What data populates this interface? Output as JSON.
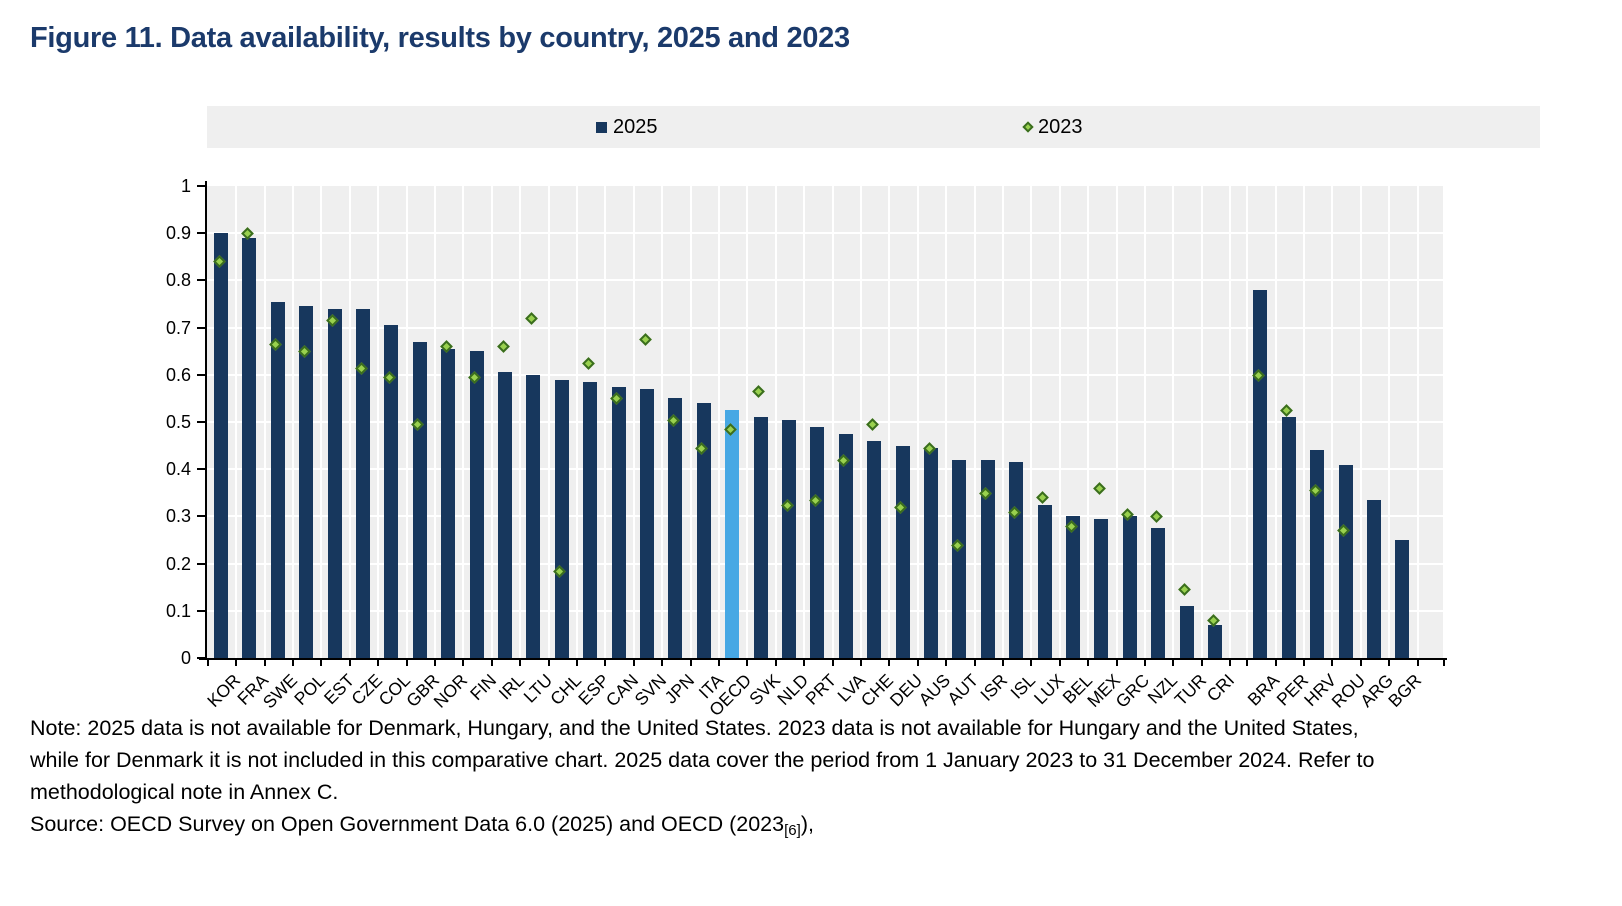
{
  "title": "Figure 11. Data availability, results by country, 2025 and 2023",
  "legend": {
    "items": [
      {
        "label": "2025",
        "marker": "square-icon",
        "color": "#17375d"
      },
      {
        "label": "2023",
        "marker": "diamond-icon",
        "color": "#99d14e"
      }
    ]
  },
  "note": {
    "lines": [
      "Note: 2025 data is not available for Denmark, Hungary, and the United States. 2023 data is not available for Hungary and the United States,",
      "while for Denmark it is not included in this comparative chart. 2025 data cover the period from 1 January 2023 to 31 December 2024. Refer to",
      "methodological note in Annex C."
    ],
    "source_prefix": "Source: OECD Survey on Open Government Data 6.0 (2025) and OECD (2023",
    "source_sub": "[6]",
    "source_suffix": "),"
  },
  "chart_data": {
    "type": "bar",
    "title": "Data availability, results by country, 2025 and 2023",
    "xlabel": "",
    "ylabel": "",
    "ylim": [
      0,
      1
    ],
    "grid": true,
    "legend_position": "top",
    "ytick_labels": [
      "0",
      "0.1",
      "0.2",
      "0.3",
      "0.4",
      "0.5",
      "0.6",
      "0.7",
      "0.8",
      "0.9",
      "1"
    ],
    "categories": [
      "KOR",
      "FRA",
      "SWE",
      "POL",
      "EST",
      "CZE",
      "COL",
      "GBR",
      "NOR",
      "FIN",
      "IRL",
      "LTU",
      "CHL",
      "ESP",
      "CAN",
      "SVN",
      "JPN",
      "ITA",
      "OECD",
      "SVK",
      "NLD",
      "PRT",
      "LVA",
      "CHE",
      "DEU",
      "AUS",
      "AUT",
      "ISR",
      "ISL",
      "LUX",
      "BEL",
      "MEX",
      "GRC",
      "NZL",
      "TUR",
      "CRI",
      "BRA",
      "PER",
      "HRV",
      "ROU",
      "ARG",
      "BGR"
    ],
    "gap_after_index": 35,
    "highlight_category": "OECD",
    "series": [
      {
        "name": "2025",
        "type": "bar",
        "values": [
          0.9,
          0.89,
          0.755,
          0.745,
          0.74,
          0.74,
          0.705,
          0.67,
          0.655,
          0.65,
          0.605,
          0.6,
          0.59,
          0.585,
          0.575,
          0.57,
          0.55,
          0.54,
          0.525,
          0.51,
          0.505,
          0.49,
          0.475,
          0.46,
          0.45,
          0.445,
          0.42,
          0.42,
          0.415,
          0.325,
          0.3,
          0.295,
          0.3,
          0.275,
          0.11,
          0.07,
          0.78,
          0.51,
          0.44,
          0.41,
          0.335,
          0.25
        ]
      },
      {
        "name": "2023",
        "type": "scatter-diamond",
        "values": [
          0.835,
          0.895,
          0.66,
          0.645,
          0.71,
          0.61,
          0.59,
          0.49,
          0.655,
          0.59,
          0.655,
          0.715,
          0.18,
          0.62,
          0.545,
          0.67,
          0.5,
          0.44,
          0.48,
          0.56,
          0.32,
          0.33,
          0.415,
          0.49,
          0.315,
          0.44,
          0.235,
          0.345,
          0.305,
          0.335,
          0.275,
          0.355,
          0.3,
          0.295,
          0.14,
          0.075,
          0.595,
          0.52,
          0.35,
          0.265,
          null,
          null
        ]
      }
    ],
    "colors": {
      "bar": "#17375d",
      "bar_highlight": "#47a8e4",
      "marker_fill": "#99d14e",
      "marker_border": "#3a6d1e",
      "plot_background": "#efefef",
      "gridline": "#ffffff",
      "title_text": "#1b3a6b"
    }
  }
}
